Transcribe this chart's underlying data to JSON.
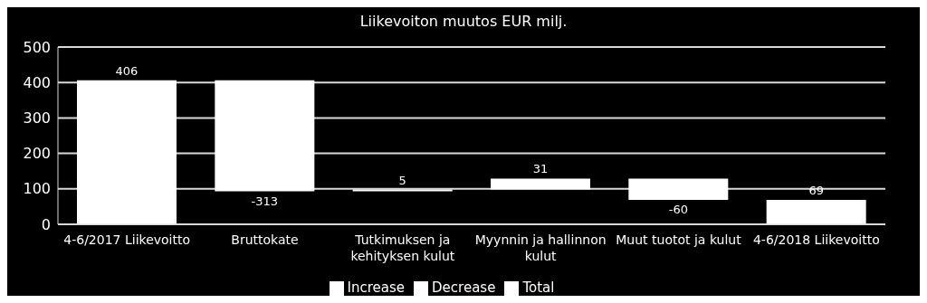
{
  "chart_data": {
    "type": "bar",
    "title": "Liikevoiton muutos EUR milj.",
    "categories": [
      "4-6/2017 Liikevoitto",
      "Bruttokate",
      "Tutkimuksen ja kehityksen kulut",
      "Myynnin ja hallinnon kulut",
      "Muut tuotot ja kulut",
      "4-6/2018 Liikevoitto"
    ],
    "series": [
      {
        "name": "Increase",
        "color": "#ffffff",
        "values": [
          null,
          null,
          5,
          31,
          null,
          null
        ],
        "base": [
          null,
          null,
          93,
          98,
          null,
          null
        ]
      },
      {
        "name": "Decrease",
        "color": "#ffffff",
        "values": [
          null,
          -313,
          null,
          null,
          -60,
          null
        ],
        "base": [
          null,
          406,
          null,
          null,
          129,
          null
        ]
      },
      {
        "name": "Total",
        "color": "#ffffff",
        "values": [
          406,
          null,
          null,
          null,
          null,
          69
        ],
        "base": [
          0,
          null,
          null,
          null,
          null,
          0
        ]
      }
    ],
    "ylim": [
      0,
      500
    ],
    "yticks": [
      0,
      100,
      200,
      300,
      400,
      500
    ],
    "grid": "y",
    "legend": "bottom",
    "data_labels": true
  }
}
